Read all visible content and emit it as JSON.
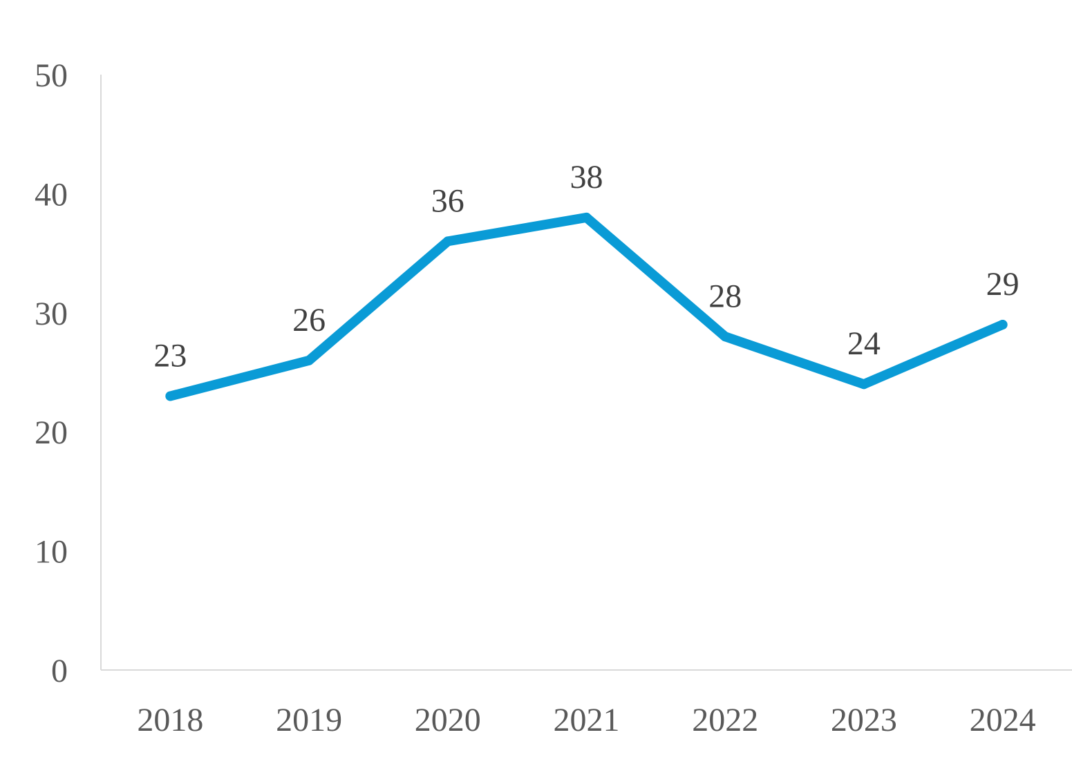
{
  "chart_data": {
    "type": "line",
    "title": "",
    "xlabel": "",
    "ylabel": "",
    "categories": [
      "2018",
      "2019",
      "2020",
      "2021",
      "2022",
      "2023",
      "2024"
    ],
    "series": [
      {
        "values": [
          23,
          26,
          36,
          38,
          28,
          24,
          29
        ],
        "color": "#0a9bd6"
      }
    ],
    "data_labels": [
      "23",
      "26",
      "36",
      "38",
      "28",
      "24",
      "29"
    ],
    "ylim": [
      0,
      50
    ],
    "yticks": [
      0,
      10,
      20,
      30,
      40,
      50
    ],
    "ytick_labels": [
      "0",
      "10",
      "20",
      "30",
      "40",
      "50"
    ],
    "grid": false,
    "legend": "none"
  }
}
